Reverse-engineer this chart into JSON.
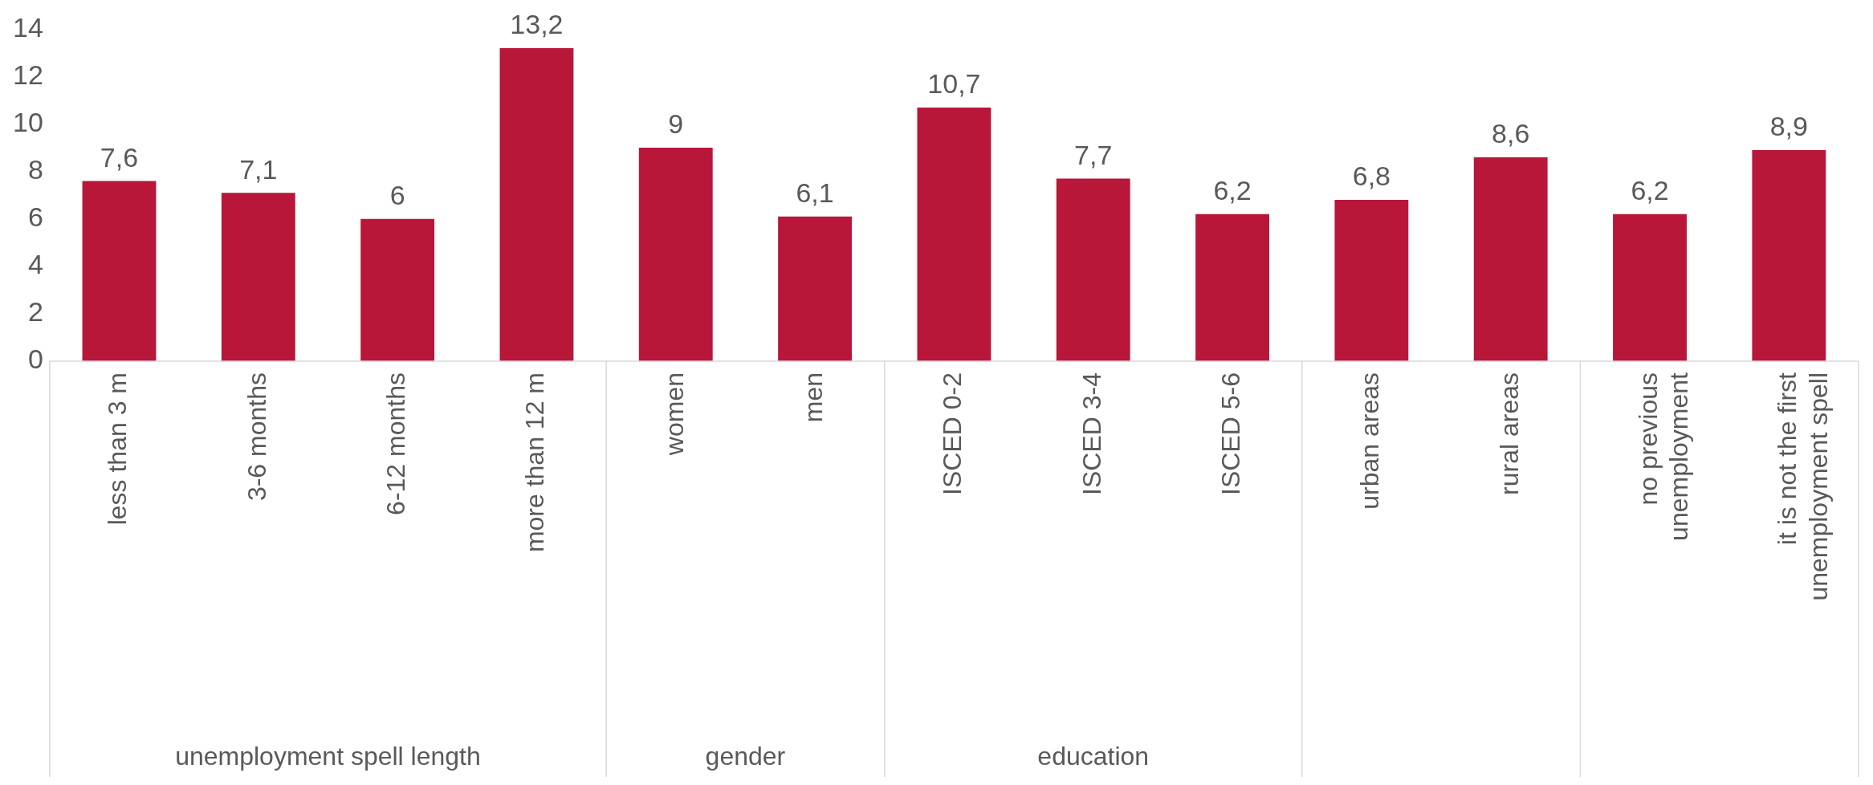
{
  "chart_data": {
    "type": "bar",
    "categories": [
      "less than 3 m",
      "3-6 months",
      "6-12 months",
      "more than 12 m",
      "women",
      "men",
      "ISCED 0-2",
      "ISCED 3-4",
      "ISCED 5-6",
      "urban areas",
      "rural areas",
      "no previous unemployment",
      "it is not the first unemployment spell"
    ],
    "values": [
      7.6,
      7.1,
      6,
      13.2,
      9,
      6.1,
      10.7,
      7.7,
      6.2,
      6.8,
      8.6,
      6.2,
      8.9
    ],
    "value_labels": [
      "7,6",
      "7,1",
      "6",
      "13,2",
      "9",
      "6,1",
      "10,7",
      "7,7",
      "6,2",
      "6,8",
      "8,6",
      "6,2",
      "8,9"
    ],
    "color": "#b8173a",
    "ylim": [
      0,
      14
    ],
    "yticks": [
      0,
      2,
      4,
      6,
      8,
      10,
      12,
      14
    ],
    "grid": false,
    "legend": false,
    "annotations": [
      "unemployment spell length",
      "gender",
      "education"
    ]
  }
}
